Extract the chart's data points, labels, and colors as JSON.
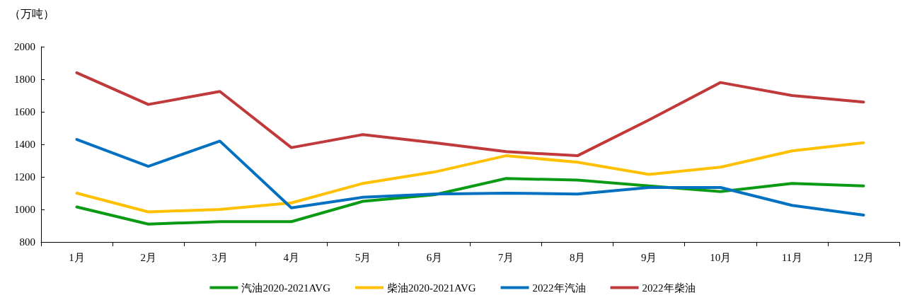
{
  "chart_data": {
    "type": "line",
    "ylabel": "（万吨）",
    "categories": [
      "1月",
      "2月",
      "3月",
      "4月",
      "5月",
      "6月",
      "7月",
      "8月",
      "9月",
      "10月",
      "11月",
      "12月"
    ],
    "series": [
      {
        "name": "汽油2020-2021AVG",
        "color": "#0a9a14",
        "values": [
          1015,
          910,
          925,
          925,
          1050,
          1090,
          1190,
          1180,
          1145,
          1110,
          1160,
          1145
        ]
      },
      {
        "name": "柴油2020-2021AVG",
        "color": "#ffc000",
        "values": [
          1100,
          985,
          1000,
          1040,
          1160,
          1230,
          1330,
          1290,
          1215,
          1260,
          1360,
          1410
        ]
      },
      {
        "name": "2022年汽油",
        "color": "#0070c0",
        "values": [
          1430,
          1265,
          1420,
          1010,
          1075,
          1095,
          1100,
          1095,
          1135,
          1135,
          1025,
          965
        ]
      },
      {
        "name": "2022年柴油",
        "color": "#c0393b",
        "values": [
          1840,
          1645,
          1725,
          1380,
          1460,
          1410,
          1355,
          1330,
          1550,
          1780,
          1700,
          1660
        ]
      }
    ],
    "ylim": [
      800,
      2000
    ],
    "yticks": [
      800,
      1000,
      1200,
      1400,
      1600,
      1800,
      2000
    ],
    "grid": false,
    "legend": "bottom",
    "marker": "none",
    "line_style": "solid"
  }
}
